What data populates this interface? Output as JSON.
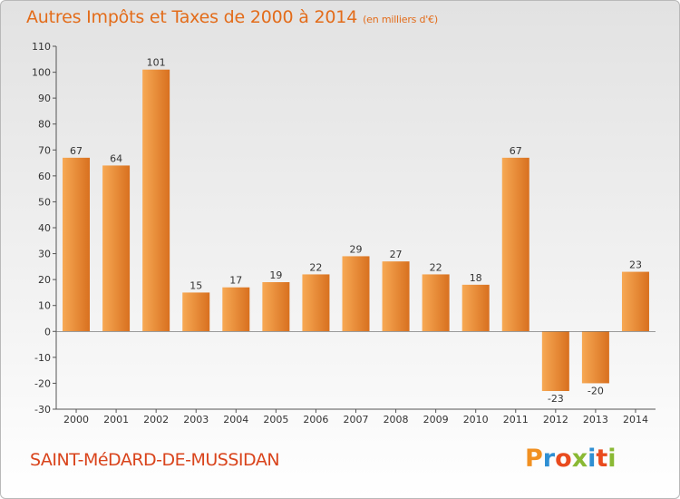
{
  "header": {
    "title": "Autres Impôts et Taxes de 2000 à 2014",
    "unit": "(en milliers d'€)"
  },
  "footer": {
    "commune": "SAINT-MéDARD-DE-MUSSIDAN",
    "logo_text": "Proxiti"
  },
  "colors": {
    "title": "#e36c1a",
    "commune": "#d9441c",
    "bar_light": "#f7a954",
    "bar_dark": "#d8701f",
    "logo_letters": [
      "#f19021",
      "#2e8fd3",
      "#e94b1e",
      "#8ab934",
      "#2e8fd3",
      "#e94b1e",
      "#8ab934"
    ]
  },
  "chart_data": {
    "type": "bar",
    "title": "Autres Impôts et Taxes de 2000 à 2014",
    "xlabel": "",
    "ylabel": "",
    "categories": [
      "2000",
      "2001",
      "2002",
      "2003",
      "2004",
      "2005",
      "2006",
      "2007",
      "2008",
      "2009",
      "2010",
      "2011",
      "2012",
      "2013",
      "2014"
    ],
    "values": [
      67,
      64,
      101,
      15,
      17,
      19,
      22,
      29,
      27,
      22,
      18,
      67,
      -23,
      -20,
      23
    ],
    "ylim": [
      -30,
      110
    ],
    "yticks": [
      110,
      100,
      90,
      80,
      70,
      60,
      50,
      40,
      30,
      20,
      10,
      0,
      -10,
      -20,
      -30
    ],
    "grid": false,
    "legend": "none"
  }
}
